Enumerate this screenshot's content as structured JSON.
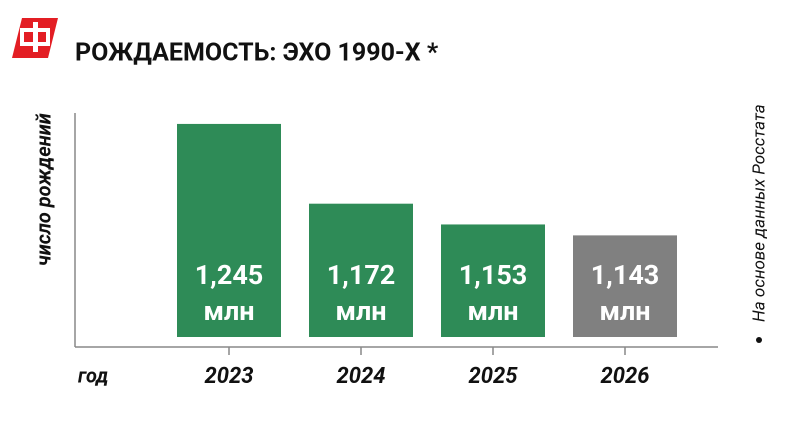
{
  "chart_data": {
    "type": "bar",
    "title": "РОЖДАЕМОСТЬ: ЭХО 1990-Х *",
    "y_label": "число рождений",
    "x_label": "год",
    "note": "На основе данных Росстата",
    "categories": [
      "2023",
      "2024",
      "2025",
      "2026"
    ],
    "values": [
      1.245,
      1.172,
      1.153,
      1.143
    ],
    "value_labels": [
      "1,245 млн",
      "1,172 млн",
      "1,153 млн",
      "1,143 млн"
    ],
    "colors": [
      "#2e8b57",
      "#2e8b57",
      "#2e8b57",
      "#808080"
    ],
    "ylim": [
      1.05,
      1.255
    ]
  }
}
